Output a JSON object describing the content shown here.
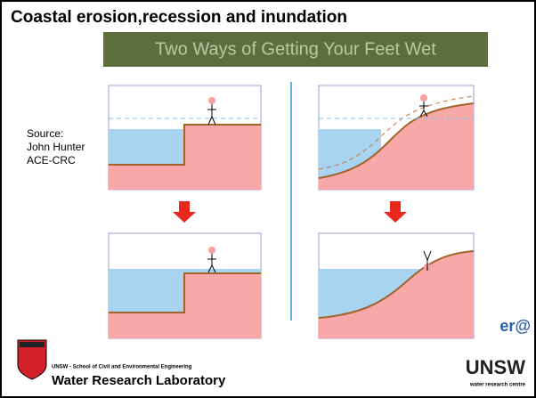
{
  "title": "Coastal erosion,recession and inundation",
  "banner": "Two Ways of Getting Your Feet Wet",
  "source": [
    "Source:",
    "John Hunter",
    "ACE-CRC"
  ],
  "footer": {
    "school": "UNSW - School of Civil and Environmental Engineering",
    "lab": "Water Research Laboratory",
    "partial": "er@",
    "logo": "UNSW",
    "logo_sub": "water research centre"
  }
}
